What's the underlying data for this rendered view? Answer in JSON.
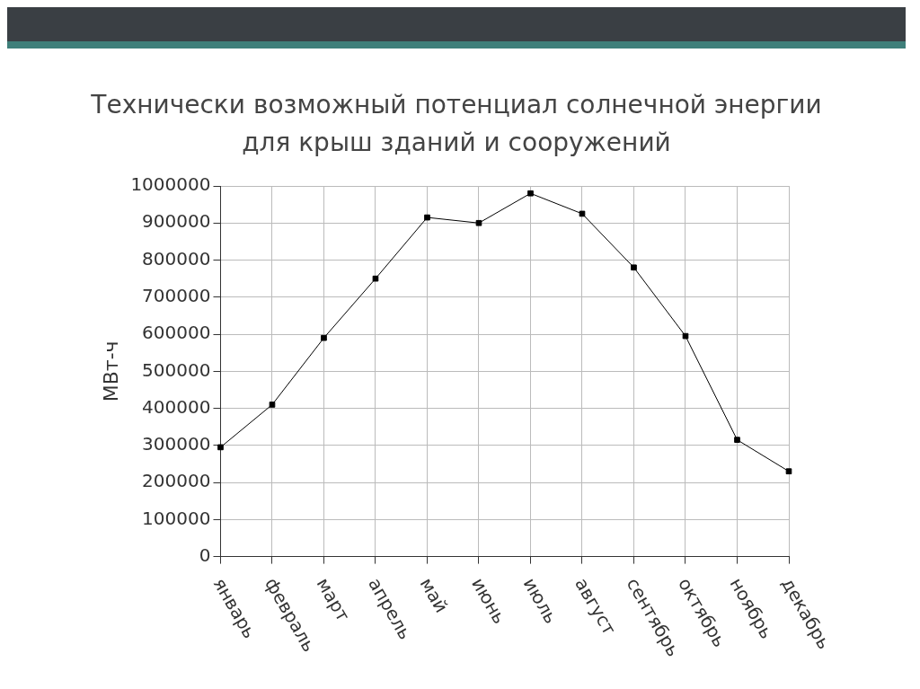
{
  "chart_data": {
    "type": "line",
    "title": "Технически возможный потенциал солнечной энергии\nдля крыш зданий и сооружений",
    "ylabel": "МВт-ч",
    "categories": [
      "январь",
      "февраль",
      "март",
      "апрель",
      "май",
      "июнь",
      "июль",
      "август",
      "сентябрь",
      "октябрь",
      "ноябрь",
      "декабрь"
    ],
    "series": [
      {
        "color": "#000000",
        "values": [
          295000,
          410000,
          590000,
          750000,
          915000,
          900000,
          980000,
          925000,
          780000,
          595000,
          315000,
          230000
        ]
      }
    ],
    "ylim": [
      0,
      1000000
    ],
    "yticks": [
      0,
      100000,
      200000,
      300000,
      400000,
      500000,
      600000,
      700000,
      800000,
      900000,
      1000000
    ],
    "grid": true,
    "legend": false,
    "marker": "square",
    "line_style": "solid"
  }
}
